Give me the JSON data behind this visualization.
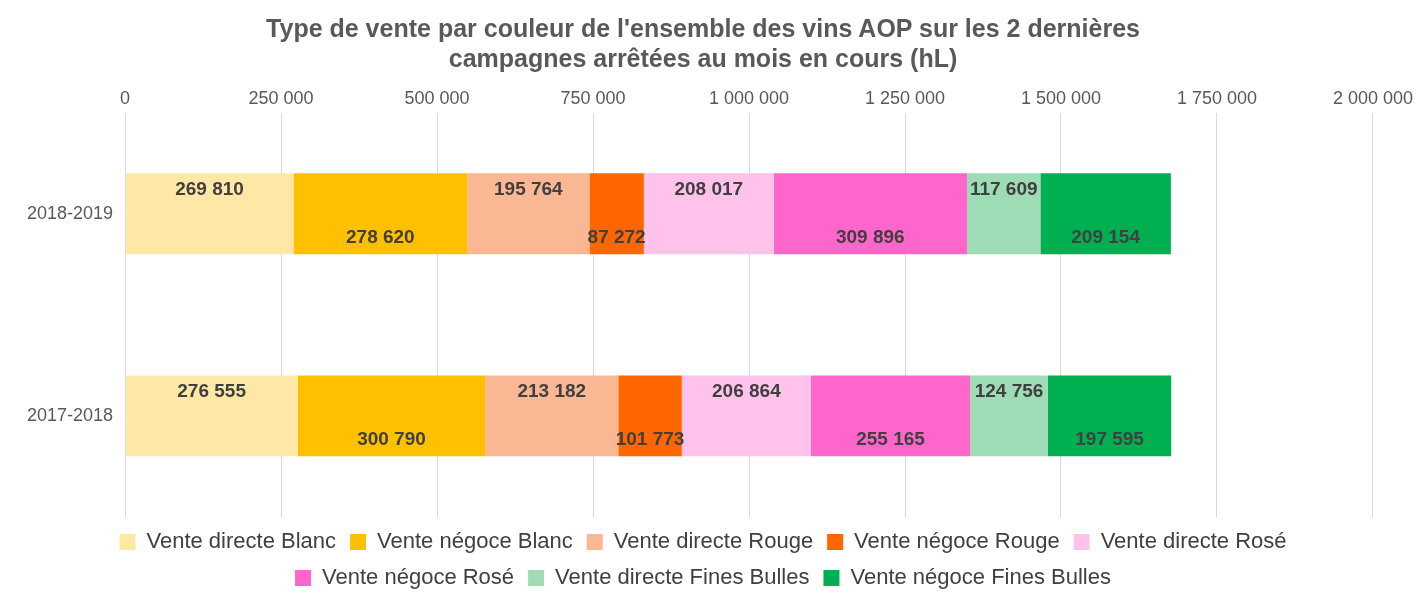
{
  "chart_data": {
    "type": "bar",
    "orientation": "horizontal",
    "stacked": true,
    "title": "Type de vente par couleur de l'ensemble des vins AOP sur les 2 dernières campagnes arrêtées au mois en cours (hL)",
    "categories": [
      "2018-2019",
      "2017-2018"
    ],
    "xlim": [
      0,
      2000000
    ],
    "xticks": [
      {
        "value": 0,
        "label": "0"
      },
      {
        "value": 250000,
        "label": "250 000"
      },
      {
        "value": 500000,
        "label": "500 000"
      },
      {
        "value": 750000,
        "label": "750 000"
      },
      {
        "value": 1000000,
        "label": "1 000 000"
      },
      {
        "value": 1250000,
        "label": "1 250 000"
      },
      {
        "value": 1500000,
        "label": "1 500 000"
      },
      {
        "value": 1750000,
        "label": "1 750 000"
      },
      {
        "value": 2000000,
        "label": "2 000 000"
      }
    ],
    "grid": "x",
    "legend": "bottom",
    "series": [
      {
        "name": "Vente directe Blanc",
        "color": "#ffe8a6",
        "values": [
          269810,
          276555
        ],
        "value_labels": [
          "269 810",
          "276 555"
        ]
      },
      {
        "name": "Vente négoce Blanc",
        "color": "#ffc000",
        "values": [
          278620,
          300790
        ],
        "value_labels": [
          "278 620",
          "300 790"
        ]
      },
      {
        "name": "Vente directe Rouge",
        "color": "#f9b893",
        "values": [
          195764,
          213182
        ],
        "value_labels": [
          "195 764",
          "213 182"
        ]
      },
      {
        "name": "Vente négoce Rouge",
        "color": "#ff6600",
        "values": [
          87272,
          101773
        ],
        "value_labels": [
          "87 272",
          "101 773"
        ]
      },
      {
        "name": "Vente directe Rosé",
        "color": "#ffc2eb",
        "values": [
          208017,
          206864
        ],
        "value_labels": [
          "208 017",
          "206 864"
        ]
      },
      {
        "name": "Vente négoce Rosé",
        "color": "#ff66cc",
        "values": [
          309896,
          255165
        ],
        "value_labels": [
          "309 896",
          "255 165"
        ]
      },
      {
        "name": "Vente directe Fines Bulles",
        "color": "#9edcb6",
        "values": [
          117609,
          124756
        ],
        "value_labels": [
          "117 609",
          "124 756"
        ]
      },
      {
        "name": "Vente négoce Fines Bulles",
        "color": "#00b050",
        "values": [
          209154,
          197595
        ],
        "value_labels": [
          "209 154",
          "197 595"
        ]
      }
    ]
  }
}
